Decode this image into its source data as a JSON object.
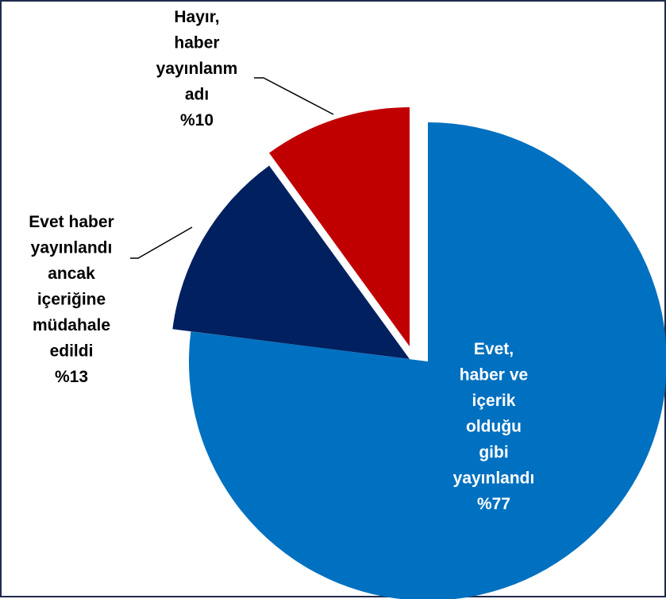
{
  "chart_data": {
    "type": "pie",
    "title": "",
    "slices": [
      {
        "value": 77,
        "label_lines": [
          "Evet,",
          "haber ve",
          "içerik",
          "olduğu",
          "gibi",
          "yayınlandı",
          "%77"
        ],
        "color": "#0070c0",
        "label_color": "#ffffff"
      },
      {
        "value": 13,
        "label_lines": [
          "Evet haber",
          "yayınlandı",
          "ancak",
          "içeriğine",
          "müdahale",
          "edildi",
          "%13"
        ],
        "color": "#002060",
        "label_color": "#000000"
      },
      {
        "value": 10,
        "label_lines": [
          "Hayır,",
          "haber",
          "yayınlanm",
          "adı",
          "%10"
        ],
        "color": "#c00000",
        "label_color": "#000000"
      }
    ]
  }
}
